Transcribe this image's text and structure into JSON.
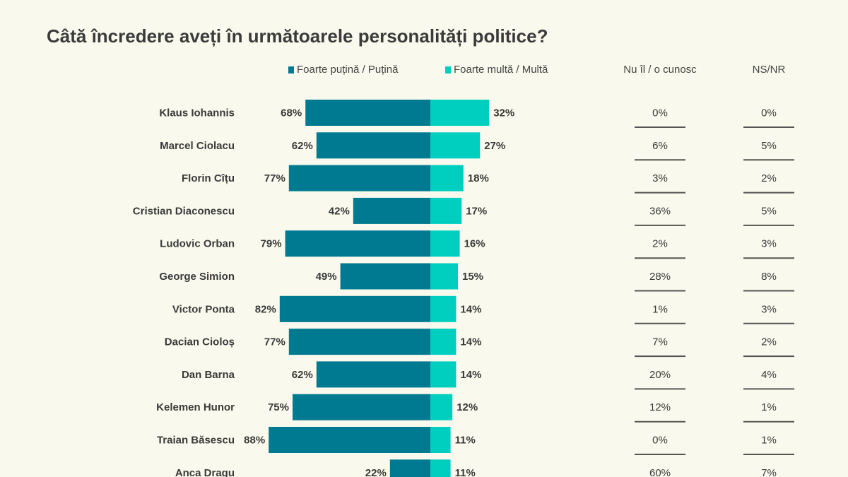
{
  "chart_data": {
    "type": "bar",
    "title": "Câtă încredere aveți în următoarele personalități politice?",
    "categories": [
      "Klaus Iohannis",
      "Marcel Ciolacu",
      "Florin Cîțu",
      "Cristian Diaconescu",
      "Ludovic Orban",
      "George Simion",
      "Victor Ponta",
      "Dacian Cioloș",
      "Dan Barna",
      "Kelemen Hunor",
      "Traian Băsescu",
      "Anca Dragu"
    ],
    "series": [
      {
        "name": "Foarte puțină / Puțină",
        "color": "#007a91",
        "values": [
          68,
          62,
          77,
          42,
          79,
          49,
          82,
          77,
          62,
          75,
          88,
          22
        ]
      },
      {
        "name": "Foarte multă / Multă",
        "color": "#00cfc0",
        "values": [
          32,
          27,
          18,
          17,
          16,
          15,
          14,
          14,
          14,
          12,
          11,
          11
        ]
      }
    ],
    "table_columns": [
      {
        "name": "Nu îl / o cunosc",
        "values": [
          0,
          6,
          3,
          36,
          2,
          28,
          1,
          7,
          20,
          12,
          0,
          60
        ]
      },
      {
        "name": "NS/NR",
        "values": [
          0,
          5,
          2,
          5,
          3,
          8,
          3,
          2,
          4,
          1,
          1,
          7
        ]
      }
    ],
    "legend_placement": "top",
    "grid": false,
    "value_suffix": "%"
  }
}
